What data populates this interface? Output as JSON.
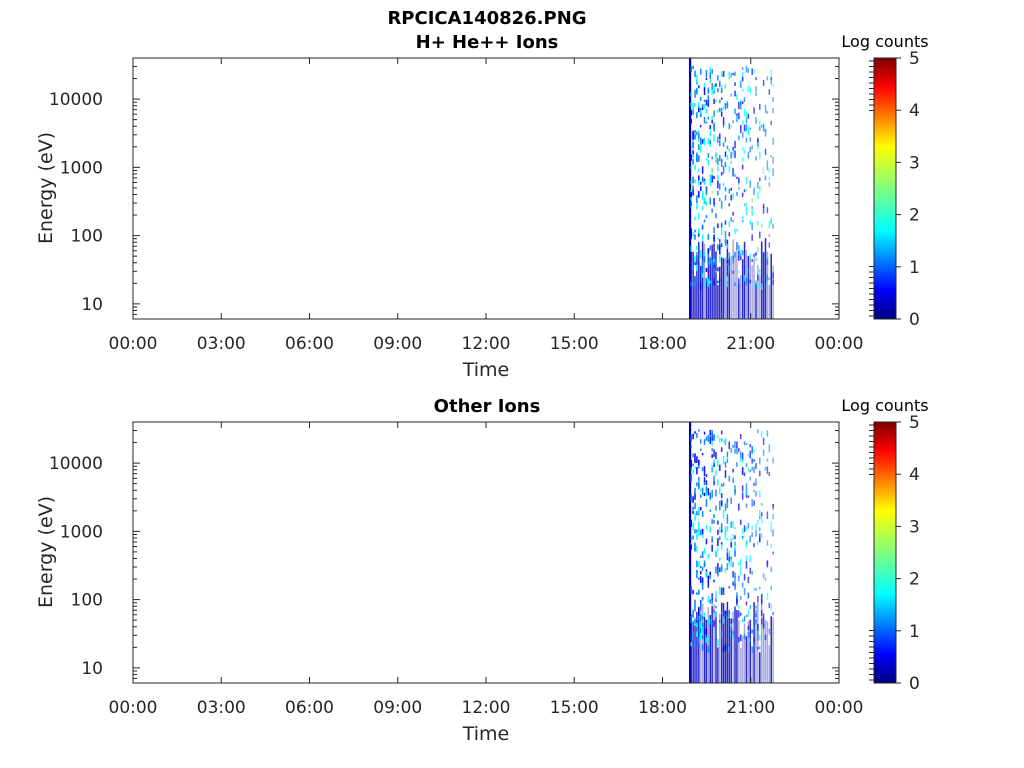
{
  "figure": {
    "title": "RPCICA140826.PNG"
  },
  "colors": {
    "background": "#ffffff",
    "axes": "#262626",
    "colormap": [
      "#00007f",
      "#0000ff",
      "#007fff",
      "#00ffff",
      "#7fff7f",
      "#ffff00",
      "#ff7f00",
      "#ff0000",
      "#7f0000"
    ]
  },
  "chart_data": [
    {
      "type": "heatmap",
      "title": "H+ He++ Ions",
      "xlabel": "Time",
      "ylabel": "Energy (eV)",
      "x_ticks": [
        "00:00",
        "03:00",
        "06:00",
        "09:00",
        "12:00",
        "15:00",
        "18:00",
        "21:00",
        "00:00"
      ],
      "xlim_hours": [
        0,
        24
      ],
      "y_scale": "log",
      "y_ticks": [
        "10",
        "100",
        "1000",
        "10000"
      ],
      "ylim": [
        6,
        40000
      ],
      "colorbar": {
        "label": "Log counts",
        "ticks": [
          "0",
          "1",
          "2",
          "3",
          "4",
          "5"
        ],
        "range": [
          0,
          5
        ],
        "colormap": "jet"
      },
      "data_interval_hours": [
        18.9,
        21.8
      ],
      "data_description_level": {
        "typical_log_counts": [
          0,
          1.5
        ],
        "max_log_counts": 2.0
      },
      "grid": false
    },
    {
      "type": "heatmap",
      "title": "Other Ions",
      "xlabel": "Time",
      "ylabel": "Energy (eV)",
      "x_ticks": [
        "00:00",
        "03:00",
        "06:00",
        "09:00",
        "12:00",
        "15:00",
        "18:00",
        "21:00",
        "00:00"
      ],
      "xlim_hours": [
        0,
        24
      ],
      "y_scale": "log",
      "y_ticks": [
        "10",
        "100",
        "1000",
        "10000"
      ],
      "ylim": [
        6,
        40000
      ],
      "colorbar": {
        "label": "Log counts",
        "ticks": [
          "0",
          "1",
          "2",
          "3",
          "4",
          "5"
        ],
        "range": [
          0,
          5
        ],
        "colormap": "jet"
      },
      "data_interval_hours": [
        18.9,
        21.8
      ],
      "data_description_level": {
        "typical_log_counts": [
          0,
          1.2
        ],
        "max_log_counts": 1.6
      },
      "grid": false
    }
  ]
}
